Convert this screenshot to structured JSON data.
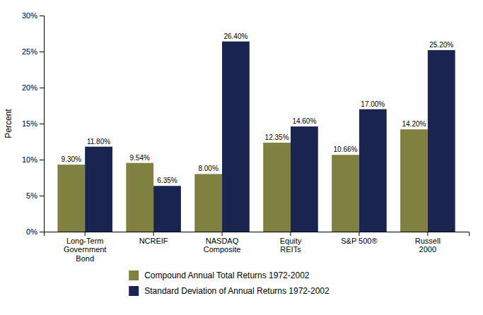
{
  "chart_data": {
    "type": "bar",
    "y_label": "Percent",
    "categories": [
      "Long-Term\nGovernment\nBond",
      "NCREIF",
      "NASDAQ\nComposite",
      "Equity\nREITs",
      "S&P 500®",
      "Russell\n2000"
    ],
    "series": [
      {
        "name": "Compound Annual Total Returns 1972-2002",
        "color": "#808040",
        "values": [
          9.3,
          9.54,
          8.0,
          12.35,
          10.66,
          14.2
        ],
        "value_labels": [
          "9.30%",
          "9.54%",
          "8.00%",
          "12.35%",
          "10.66%",
          "14.20%"
        ]
      },
      {
        "name": "Standard Deviation of Annual Returns 1972-2002",
        "color": "#1a2450",
        "values": [
          11.8,
          6.35,
          26.4,
          14.6,
          17.0,
          25.2
        ],
        "value_labels": [
          "11.80%",
          "6.35%",
          "26.40%",
          "14.60%",
          "17.00%",
          "25.20%"
        ]
      }
    ],
    "ylim": [
      0,
      30
    ],
    "yticks": [
      {
        "value": 0,
        "label": "0%"
      },
      {
        "value": 5,
        "label": "5%"
      },
      {
        "value": 10,
        "label": "10%"
      },
      {
        "value": 15,
        "label": "15%"
      },
      {
        "value": 20,
        "label": "20%"
      },
      {
        "value": 25,
        "label": "25%"
      },
      {
        "value": 30,
        "label": "30%"
      }
    ],
    "grid": false,
    "legend": "bottom",
    "data_labels": true
  }
}
